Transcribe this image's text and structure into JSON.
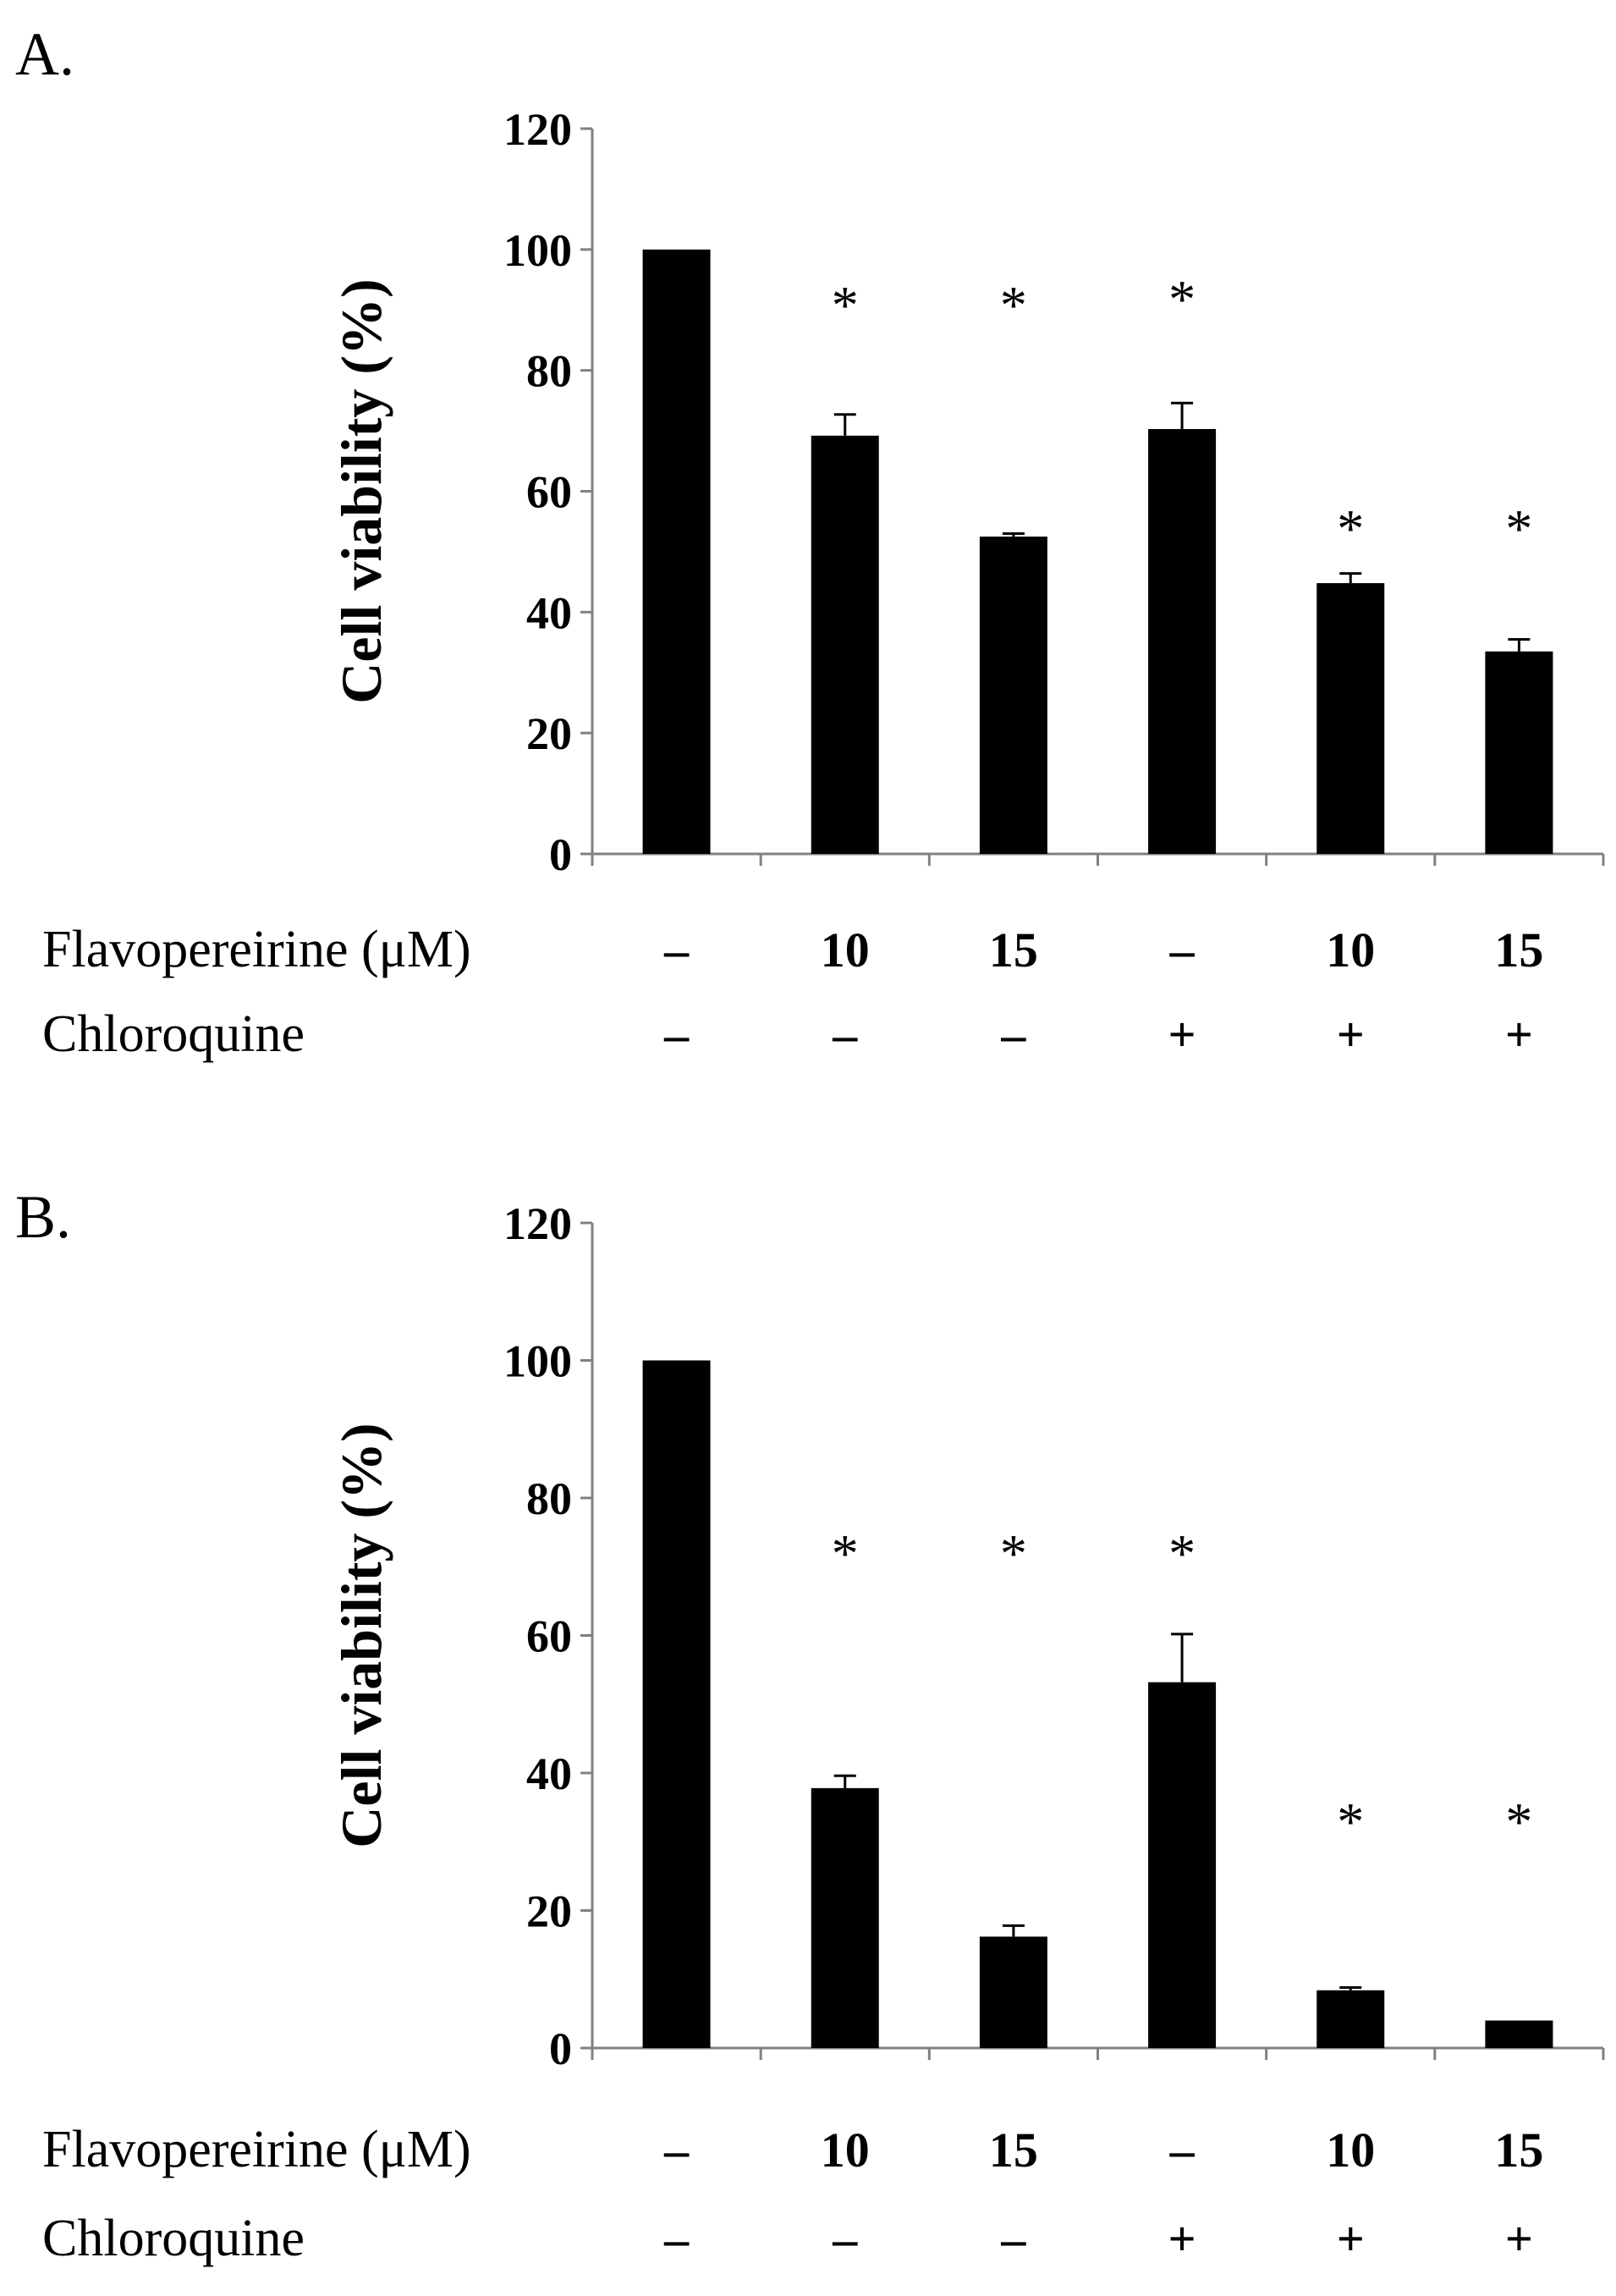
{
  "chart_data": [
    {
      "panel_label": "A.",
      "type": "bar",
      "ylabel": "Cell viability (%)",
      "ylim": [
        0,
        120
      ],
      "yticks": [
        0,
        20,
        40,
        60,
        80,
        100,
        120
      ],
      "row_labels": [
        "Flavopereirine (μM)",
        "Chloroquine"
      ],
      "flavopereirine": [
        "–",
        "10",
        "15",
        "–",
        "10",
        "15"
      ],
      "chloroquine": [
        "–",
        "–",
        "–",
        "+",
        "+",
        "+"
      ],
      "values": [
        100,
        69.2,
        52.5,
        70.3,
        44.8,
        33.5
      ],
      "errors": [
        0,
        3.5,
        0.5,
        4.3,
        1.6,
        2.0
      ],
      "significance": [
        "",
        "*",
        "*",
        "*",
        "*",
        "*"
      ],
      "significance_level": [
        null,
        92,
        92,
        93,
        55,
        55
      ],
      "bar_color": "#000000"
    },
    {
      "panel_label": "B.",
      "type": "bar",
      "ylabel": "Cell viability (%)",
      "ylim": [
        0,
        120
      ],
      "yticks": [
        0,
        20,
        40,
        60,
        80,
        100,
        120
      ],
      "row_labels": [
        "Flavopereirine (μM)",
        "Chloroquine"
      ],
      "flavopereirine": [
        "–",
        "10",
        "15",
        "–",
        "10",
        "15"
      ],
      "chloroquine": [
        "–",
        "–",
        "–",
        "+",
        "+",
        "+"
      ],
      "values": [
        100,
        37.8,
        16.2,
        53.2,
        8.4,
        4.0
      ],
      "errors": [
        0,
        1.8,
        1.6,
        7.0,
        0.4,
        0
      ],
      "significance": [
        "",
        "*",
        "*",
        "*",
        "*",
        "*"
      ],
      "significance_level": [
        null,
        73,
        73,
        73,
        34,
        34
      ],
      "bar_color": "#000000"
    }
  ]
}
